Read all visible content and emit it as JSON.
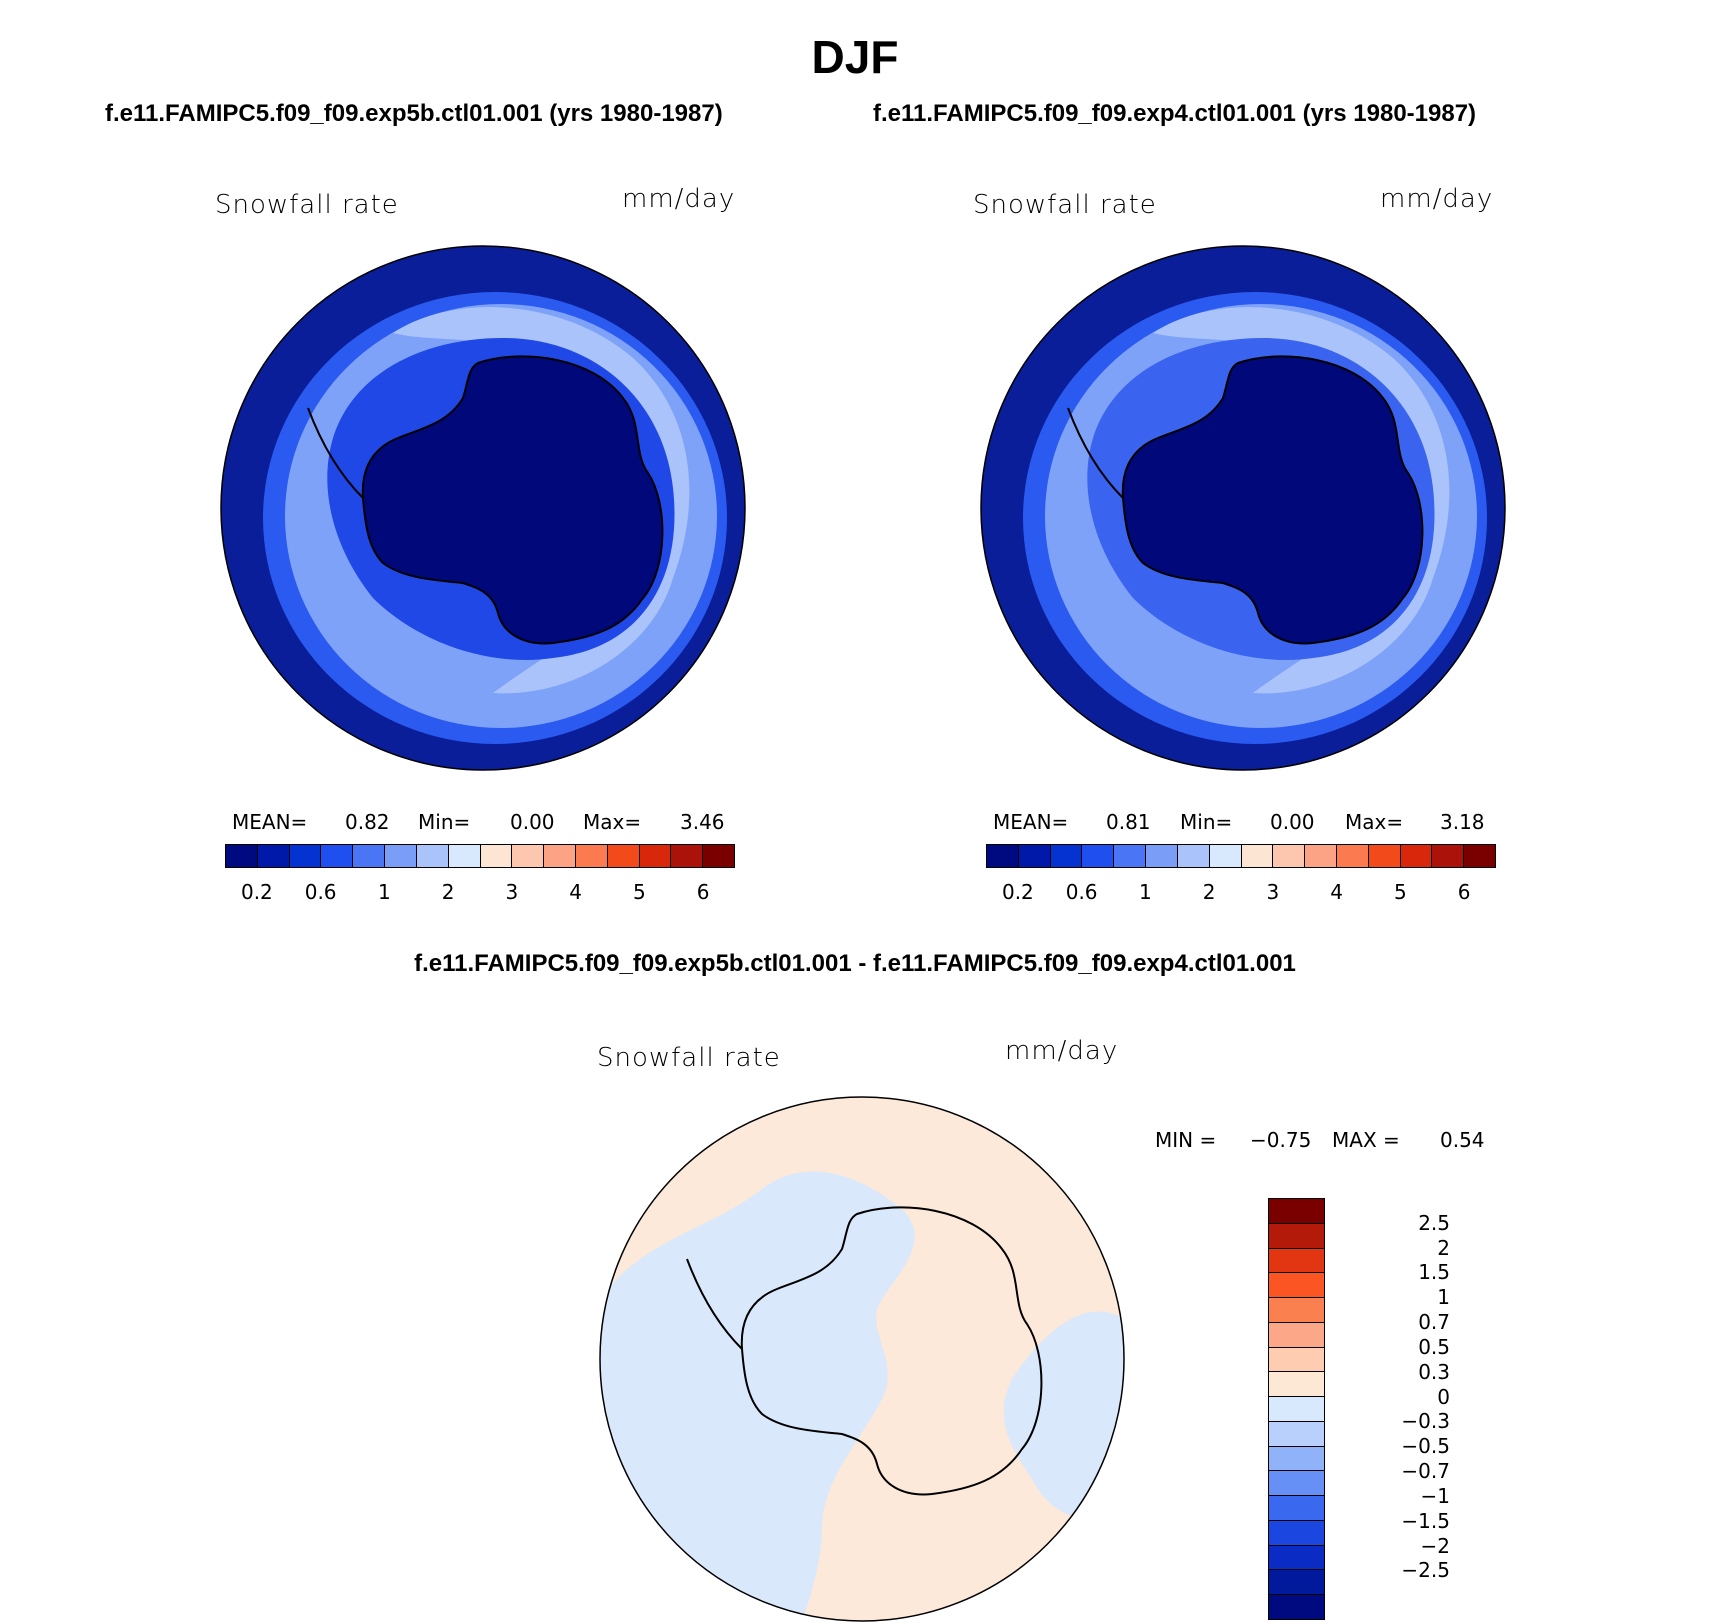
{
  "figure": {
    "season": "DJF",
    "case1_title": "f.e11.FAMIPC5.f09_f09.exp5b.ctl01.001 (yrs 1980-1987)",
    "case2_title": "f.e11.FAMIPC5.f09_f09.exp4.ctl01.001 (yrs 1980-1987)",
    "diff_title": "f.e11.FAMIPC5.f09_f09.exp5b.ctl01.001 - f.e11.FAMIPC5.f09_f09.exp4.ctl01.001"
  },
  "panels": [
    {
      "variable": "Snowfall rate",
      "units": "mm/day",
      "mean_label": "MEAN=",
      "mean": "0.82",
      "min_label": "Min=",
      "min": "0.00",
      "max_label": "Max=",
      "max": "3.46"
    },
    {
      "variable": "Snowfall rate",
      "units": "mm/day",
      "mean_label": "MEAN=",
      "mean": "0.81",
      "min_label": "Min=",
      "min": "0.00",
      "max_label": "Max=",
      "max": "3.18"
    }
  ],
  "diff_panel": {
    "variable": "Snowfall rate",
    "units": "mm/day",
    "min_label": "MIN =",
    "min": "−0.75",
    "max_label": "MAX =",
    "max": "0.54"
  },
  "colorbar_abs": {
    "colors": [
      "#000a80",
      "#0019a8",
      "#0533d1",
      "#1f50ef",
      "#4a75f5",
      "#7a9df8",
      "#aac4fb",
      "#d8e8fd",
      "#fde5d3",
      "#fcc7ae",
      "#fca385",
      "#fb7a4f",
      "#f34a1c",
      "#d8270b",
      "#ab120a",
      "#7a0000"
    ],
    "ticks": [
      "0.2",
      "0.6",
      "1",
      "2",
      "3",
      "4",
      "5",
      "6"
    ]
  },
  "colorbar_diff": {
    "colors": [
      "#7a0000",
      "#b41a0a",
      "#e23512",
      "#fb5524",
      "#fb8050",
      "#fca888",
      "#fdccb1",
      "#fde8d6",
      "#d8e8fd",
      "#b8d0fb",
      "#90b2f9",
      "#6690f6",
      "#3a68ef",
      "#1b47e0",
      "#0a2cc4",
      "#001a9b",
      "#000a80"
    ],
    "ticks": [
      "2.5",
      "2",
      "1.5",
      "1",
      "0.7",
      "0.5",
      "0.3",
      "0",
      "−0.3",
      "−0.5",
      "−0.7",
      "−1",
      "−1.5",
      "−2",
      "−2.5"
    ]
  },
  "palette": {
    "abs_ocean_outer": "#0a1e9a",
    "abs_ocean_mid": "#5b84f5",
    "abs_ocean_light": "#aac4fb",
    "abs_coast": "#1f48e6",
    "abs_land": "#00087a",
    "diff_pos": "#fde9d9",
    "diff_neg": "#d9e8fb",
    "coastline": "#000000"
  }
}
